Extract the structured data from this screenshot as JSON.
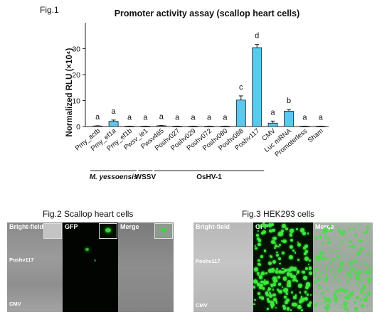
{
  "fig1": {
    "label": "Fig.1",
    "chart_data": {
      "type": "bar",
      "title": "Promoter activity assay (scallop heart cells)",
      "ylabel": "Normalized RLU (×10⁴)",
      "ylim": [
        0,
        40
      ],
      "yticks": [
        "0",
        "10",
        "20",
        "30"
      ],
      "categories": [
        "Pmy_actb",
        "Pmy_ef1a",
        "Pmy_ef1b",
        "Pwsv_ie1",
        "Pwsv465",
        "Poshv027",
        "Poshv029",
        "Poshv072",
        "Poshv080",
        "Poshv088",
        "Poshv117",
        "CMV",
        "Luc mRNA",
        "Promoterless",
        "Sham"
      ],
      "values": [
        0.2,
        2.0,
        0.1,
        0.1,
        0.3,
        0.1,
        0.1,
        0.1,
        0.1,
        10.2,
        30.4,
        1.3,
        5.9,
        0.1,
        0.1
      ],
      "errors": [
        0.1,
        0.5,
        0.05,
        0.05,
        0.1,
        0.05,
        0.05,
        0.05,
        0.05,
        1.6,
        1.2,
        0.8,
        0.7,
        0.05,
        0.05
      ],
      "significance": [
        "a",
        "a",
        "a",
        "a",
        "a",
        "a",
        "a",
        "a",
        "a",
        "c",
        "d",
        "a",
        "b",
        "a",
        "a"
      ],
      "groups": [
        {
          "name": "M. yessoensis",
          "from": 0,
          "to": 2
        },
        {
          "name": "WSSV",
          "from": 3,
          "to": 3
        },
        {
          "name": "OsHV-1",
          "from": 4,
          "to": 10
        }
      ],
      "bar_color": "#5bc8ec"
    }
  },
  "fig2": {
    "label": "Fig.2 Scallop heart cells",
    "columns": [
      "Bright-field",
      "GFP",
      "Merge"
    ],
    "rows": [
      "Poshv117",
      "CMV"
    ]
  },
  "fig3": {
    "label": "Fig.3 HEK293 cells",
    "columns": [
      "Bright-field",
      "GFP",
      "Merge"
    ],
    "rows": [
      "Poshv117",
      "CMV"
    ]
  }
}
